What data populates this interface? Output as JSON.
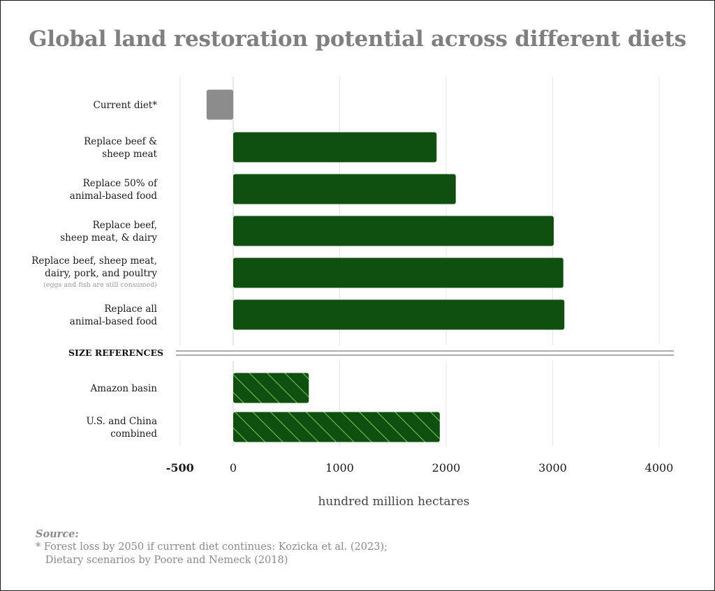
{
  "chart_data": {
    "type": "bar",
    "orientation": "horizontal",
    "title": "Global land restoration potential across different diets",
    "xlabel": "hundred million hectares",
    "ylabel": "",
    "xlim": [
      -500,
      4000
    ],
    "xticks": [
      {
        "value": -500,
        "label": "-500",
        "bold": true
      },
      {
        "value": 0,
        "label": "0",
        "bold": false
      },
      {
        "value": 1000,
        "label": "1000",
        "bold": false
      },
      {
        "value": 2000,
        "label": "2000",
        "bold": false
      },
      {
        "value": 3000,
        "label": "3000",
        "bold": false
      },
      {
        "value": 4000,
        "label": "4000",
        "bold": false
      }
    ],
    "grid": true,
    "colors": {
      "diet": "#0f4f0f",
      "current": "#8c8c8c",
      "reference_fill": "#0f4f0f",
      "reference_hatch": "#7ccb55",
      "gridline": "#e6e6e6",
      "title": "#7f7f7f"
    },
    "diet_scenarios": [
      {
        "lines": [
          "Current diet*"
        ],
        "value": -250,
        "color_key": "current"
      },
      {
        "lines": [
          "Replace beef &",
          "sheep meat"
        ],
        "value": 1910,
        "color_key": "diet"
      },
      {
        "lines": [
          "Replace 50% of",
          "animal-based food"
        ],
        "value": 2090,
        "color_key": "diet"
      },
      {
        "lines": [
          "Replace beef,",
          "sheep meat, & dairy"
        ],
        "value": 3010,
        "color_key": "diet"
      },
      {
        "lines": [
          "Replace beef, sheep meat,",
          "dairy, pork, and poultry"
        ],
        "sublabel": "(eggs and fish are still consumed)",
        "value": 3100,
        "color_key": "diet"
      },
      {
        "lines": [
          "Replace all",
          "animal-based food"
        ],
        "value": 3110,
        "color_key": "diet"
      }
    ],
    "section_label": "SIZE REFERENCES",
    "size_references": [
      {
        "lines": [
          "Amazon basin"
        ],
        "value": 710
      },
      {
        "lines": [
          "U.S. and China",
          "combined"
        ],
        "value": 1940
      }
    ]
  },
  "source": {
    "title": "Source:",
    "lines": [
      "* Forest loss by 2050 if current diet continues: Kozicka et al. (2023);",
      "   Dietary scenarios by Poore and Nemeck (2018)"
    ]
  }
}
